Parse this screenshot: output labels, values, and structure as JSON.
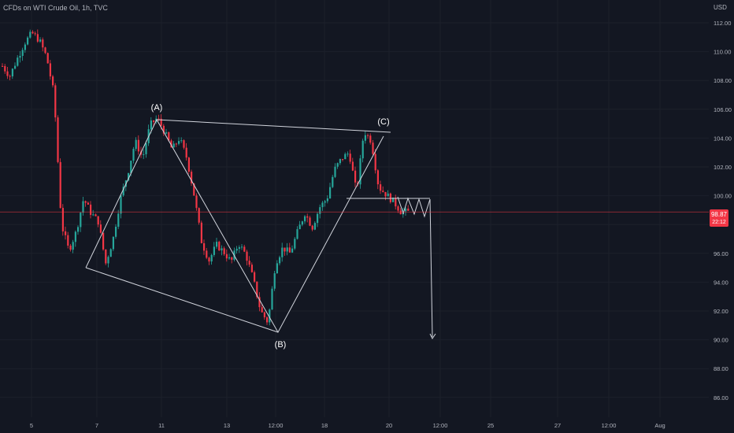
{
  "header": {
    "title": "CFDs on WTI Crude Oil, 1h, TVC",
    "currency": "USD"
  },
  "last_price": {
    "value": "98.87",
    "countdown": "22:12",
    "level": 98.87,
    "color": "#f23645"
  },
  "colors": {
    "up": "#26a69a",
    "down": "#f23645",
    "background": "#131722",
    "text": "#b2b5be",
    "drawing": "#d1d4dc"
  },
  "chart_data": {
    "type": "candlestick",
    "y_ticks": [
      "112.00",
      "110.00",
      "108.00",
      "106.00",
      "104.00",
      "102.00",
      "100.00",
      "98.00",
      "96.00",
      "94.00",
      "92.00",
      "90.00",
      "88.00",
      "86.00"
    ],
    "y_tick_values": [
      112,
      110,
      108,
      106,
      104,
      102,
      100,
      98,
      96,
      94,
      92,
      90,
      88,
      86
    ],
    "x_ticks": [
      "5",
      "7",
      "11",
      "13",
      "12:00",
      "18",
      "20",
      "12:00",
      "25",
      "27",
      "12:00",
      "Aug"
    ],
    "wave_labels": [
      {
        "label": "(A)",
        "price": 105.4
      },
      {
        "label": "(B)",
        "price": 90.6
      },
      {
        "label": "(C)",
        "price": 104.5
      }
    ],
    "price_path_approx": [
      109.0,
      108.3,
      109.5,
      110.6,
      111.3,
      110.8,
      109.6,
      107.0,
      98.0,
      96.2,
      97.5,
      99.8,
      98.8,
      98.2,
      95.3,
      97.0,
      99.8,
      101.6,
      103.8,
      102.6,
      104.9,
      105.4,
      104.4,
      103.2,
      104.0,
      102.6,
      100.0,
      96.8,
      95.5,
      96.6,
      96.1,
      95.4,
      96.7,
      95.9,
      94.2,
      92.0,
      91.2,
      95.3,
      96.4,
      96.0,
      97.5,
      98.8,
      97.8,
      99.2,
      99.8,
      101.8,
      102.6,
      103.0,
      100.2,
      104.5,
      103.8,
      100.6,
      100.1,
      99.6,
      98.9,
      98.87
    ]
  }
}
